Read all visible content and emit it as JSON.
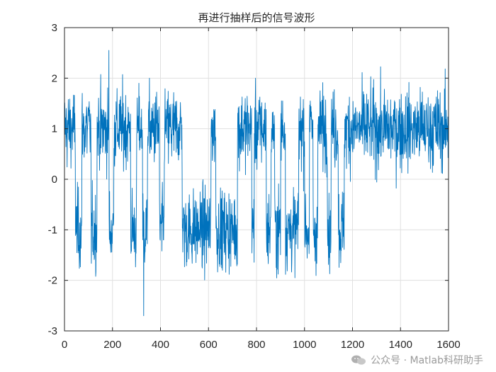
{
  "chart_data": {
    "type": "line",
    "title": "再进行抽样后的信号波形",
    "xlabel": "",
    "ylabel": "",
    "xlim": [
      0,
      1600
    ],
    "ylim": [
      -3,
      3
    ],
    "grid": true,
    "x_ticks": [
      0,
      200,
      400,
      600,
      800,
      1000,
      1200,
      1400,
      1600
    ],
    "y_ticks": [
      -3,
      -2,
      -1,
      0,
      1,
      2,
      3
    ],
    "series": [
      {
        "color": "#0072BD",
        "description_of_data": "bipolar random binary sequence (±1) with additive noise, 1600 samples, alternating segments near +1 and -1",
        "levels": [
          1,
          -1,
          1,
          -1,
          1,
          -1,
          1,
          -1,
          1,
          -1,
          1,
          -1,
          1,
          -1,
          1,
          -1,
          1,
          -1,
          1,
          -1,
          1,
          -1,
          1,
          -1,
          1,
          -1,
          1,
          -1,
          1,
          -1,
          1,
          -1,
          1
        ],
        "segment_end_x": [
          45,
          72,
          110,
          135,
          185,
          205,
          275,
          300,
          325,
          345,
          395,
          415,
          490,
          610,
          630,
          720,
          780,
          790,
          840,
          860,
          875,
          900,
          920,
          975,
          1000,
          1020,
          1035,
          1055,
          1095,
          1110,
          1140,
          1165,
          1180
        ]
      }
    ],
    "min_point": {
      "x": 330,
      "y": -2.7
    },
    "max_point": {
      "x": 185,
      "y": 2.55
    }
  },
  "watermark": {
    "text": "公众号 · Matlab科研助手"
  }
}
